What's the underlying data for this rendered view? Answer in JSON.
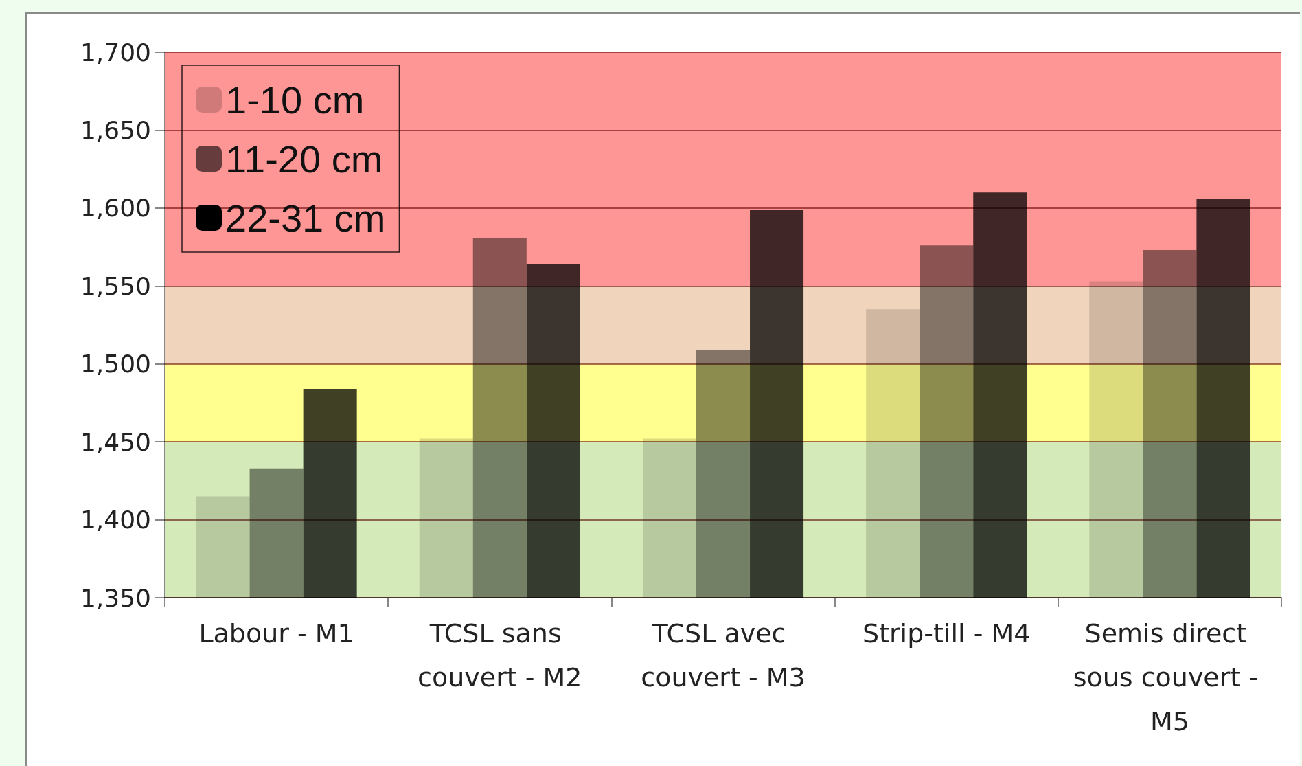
{
  "chart_data": {
    "type": "bar",
    "categories": [
      "Labour - M1",
      "TCSL sans couvert - M2",
      "TCSL avec couvert - M3",
      "Strip-till - M4",
      "Semis direct sous couvert - M5"
    ],
    "series": [
      {
        "name": "1-10 cm",
        "color": "#d0d0d0",
        "values": [
          1415,
          1452,
          1452,
          1535,
          1553
        ]
      },
      {
        "name": "11-20 cm",
        "color": "#666666",
        "values": [
          1433,
          1581,
          1509,
          1576,
          1573
        ]
      },
      {
        "name": "22-31 cm",
        "color": "#000000",
        "values": [
          1484,
          1564,
          1599,
          1610,
          1606
        ]
      }
    ],
    "ylim": [
      1350,
      1700
    ],
    "yticks": [
      {
        "value": 1350,
        "label": "1,350"
      },
      {
        "value": 1400,
        "label": "1,400"
      },
      {
        "value": 1450,
        "label": "1,450"
      },
      {
        "value": 1500,
        "label": "1,500"
      },
      {
        "value": 1550,
        "label": "1,550"
      },
      {
        "value": 1600,
        "label": "1,600"
      },
      {
        "value": 1650,
        "label": "1,650"
      },
      {
        "value": 1700,
        "label": "1,700"
      }
    ],
    "bands": [
      {
        "axis": "y",
        "from": 1350,
        "to": 1450,
        "color": "#d4eab8"
      },
      {
        "axis": "y",
        "from": 1450,
        "to": 1500,
        "color": "#ffff90"
      },
      {
        "axis": "y",
        "from": 1500,
        "to": 1550,
        "color": "#f0d4bc"
      },
      {
        "axis": "y",
        "from": 1550,
        "to": 1700,
        "color": "#ff9696"
      }
    ],
    "grid": "y",
    "legend": "top left"
  }
}
